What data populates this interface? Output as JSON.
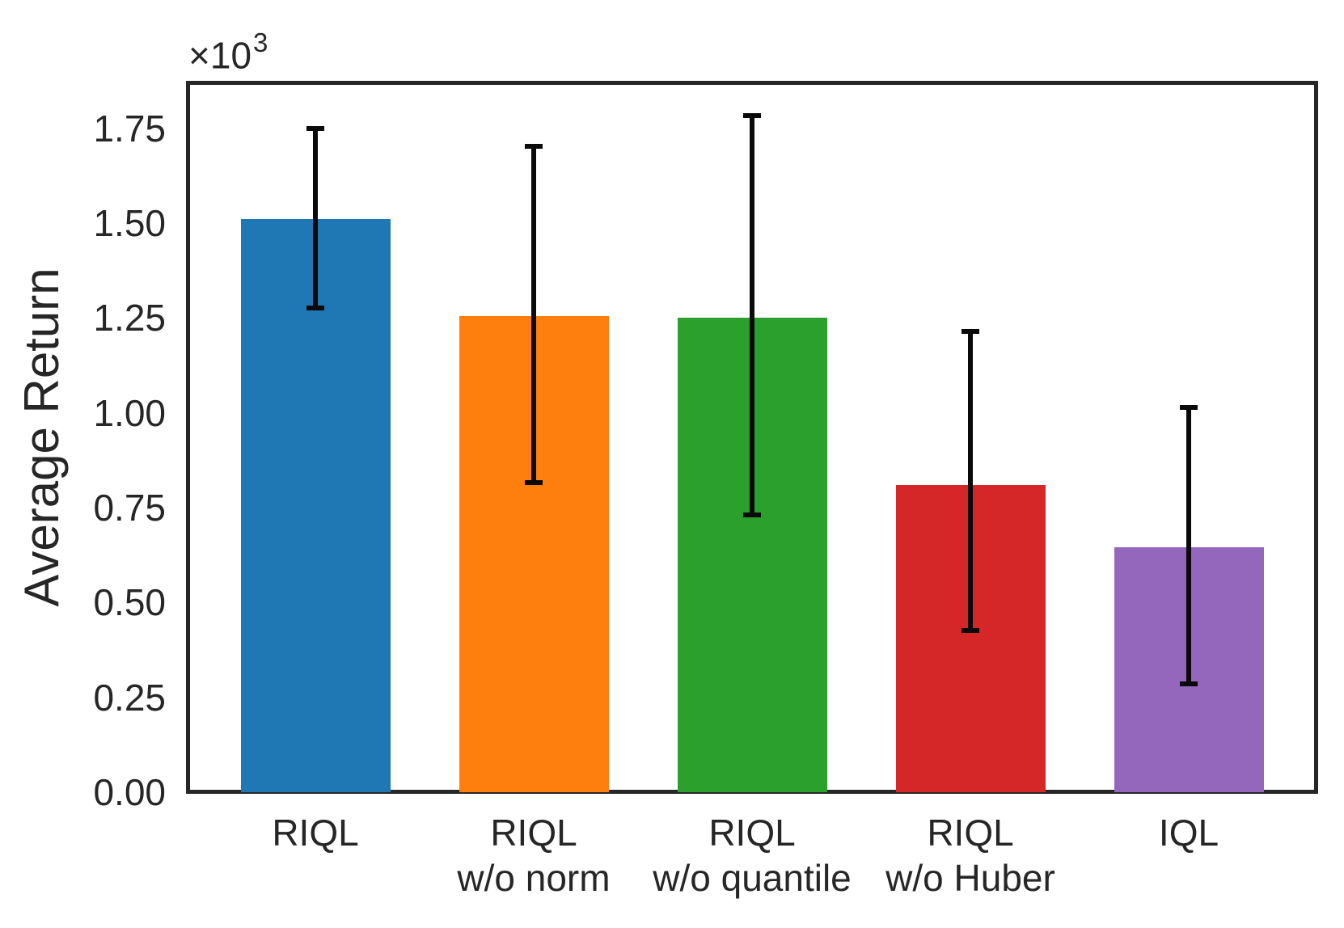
{
  "chart_data": {
    "type": "bar",
    "title": "",
    "xlabel": "",
    "ylabel": "Average Return",
    "y_offset_base": "×10",
    "y_offset_exponent": "3",
    "y_multiplier": 1000,
    "ylim": [
      0,
      1871
    ],
    "yticks": [
      {
        "value": 0,
        "label": "0.00"
      },
      {
        "value": 250,
        "label": "0.25"
      },
      {
        "value": 500,
        "label": "0.50"
      },
      {
        "value": 750,
        "label": "0.75"
      },
      {
        "value": 1000,
        "label": "1.00"
      },
      {
        "value": 1250,
        "label": "1.25"
      },
      {
        "value": 1500,
        "label": "1.50"
      },
      {
        "value": 1750,
        "label": "1.75"
      }
    ],
    "grid": false,
    "legend": null,
    "bars": [
      {
        "category_lines": [
          "RIQL"
        ],
        "name": "RIQL",
        "value": 1510,
        "error_low": 1270,
        "error_high": 1755,
        "color": "#1f77b4"
      },
      {
        "category_lines": [
          "RIQL",
          "w/o norm"
        ],
        "name": "RIQL w/o norm",
        "value": 1255,
        "error_low": 810,
        "error_high": 1710,
        "color": "#ff7f0e"
      },
      {
        "category_lines": [
          "RIQL",
          "w/o quantile"
        ],
        "name": "RIQL w/o quantile",
        "value": 1250,
        "error_low": 725,
        "error_high": 1790,
        "color": "#2ca02c"
      },
      {
        "category_lines": [
          "RIQL",
          "w/o Huber"
        ],
        "name": "RIQL w/o Huber",
        "value": 810,
        "error_low": 420,
        "error_high": 1220,
        "color": "#d62728"
      },
      {
        "category_lines": [
          "IQL"
        ],
        "name": "IQL",
        "value": 645,
        "error_low": 280,
        "error_high": 1020,
        "color": "#9467bd"
      }
    ]
  }
}
